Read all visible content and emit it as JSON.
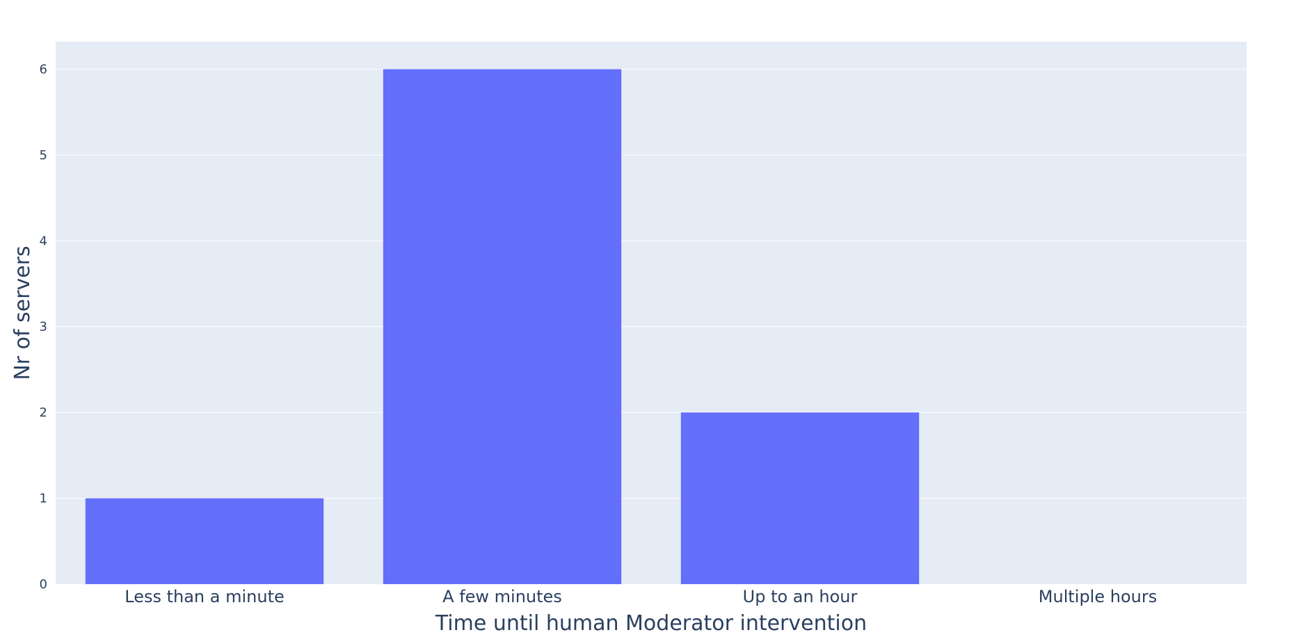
{
  "chart_data": {
    "type": "bar",
    "categories": [
      "Less than a minute",
      "A few minutes",
      "Up to an hour",
      "Multiple hours"
    ],
    "values": [
      1,
      6,
      2,
      0
    ],
    "xlabel": "Time until human Moderator intervention",
    "ylabel": "Nr of servers",
    "ylim": [
      0,
      6.32
    ],
    "yticks": [
      0,
      1,
      2,
      3,
      4,
      5,
      6
    ],
    "grid": true,
    "legend": "none",
    "colors": {
      "bar": "#636efa",
      "plot_bg": "#e5ecf6",
      "grid": "#ffffff",
      "text": "#2a3f5f"
    }
  }
}
